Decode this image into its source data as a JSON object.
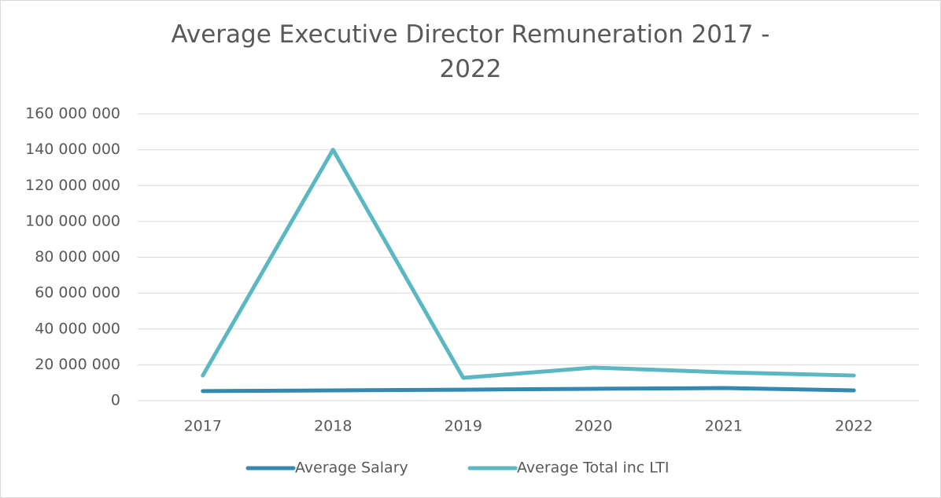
{
  "chart_data": {
    "type": "line",
    "title": "Average Executive Director Remuneration 2017 - 2022",
    "categories": [
      "2017",
      "2018",
      "2019",
      "2020",
      "2021",
      "2022"
    ],
    "series": [
      {
        "name": "Average Salary",
        "color": "#3389b0",
        "values": [
          5300000,
          5700000,
          6100000,
          6600000,
          7000000,
          5700000
        ]
      },
      {
        "name": "Average Total inc LTI",
        "color": "#5bb7c2",
        "values": [
          14000000,
          140000000,
          12700000,
          18400000,
          15800000,
          14000000
        ]
      }
    ],
    "ylim": [
      0,
      160000000
    ],
    "yticks": [
      0,
      {
        "value": 20000000,
        "label": "20 000 000"
      },
      {
        "value": 40000000,
        "label": "40 000 000"
      },
      {
        "value": 60000000,
        "label": "60 000 000"
      },
      {
        "value": 80000000,
        "label": "80 000 000"
      },
      {
        "value": 100000000,
        "label": "100 000 000"
      },
      {
        "value": 120000000,
        "label": "120 000 000"
      },
      {
        "value": 140000000,
        "label": "140 000 000"
      },
      {
        "value": 160000000,
        "label": "160 000 000"
      }
    ],
    "grid": true,
    "legend": "bottom"
  }
}
